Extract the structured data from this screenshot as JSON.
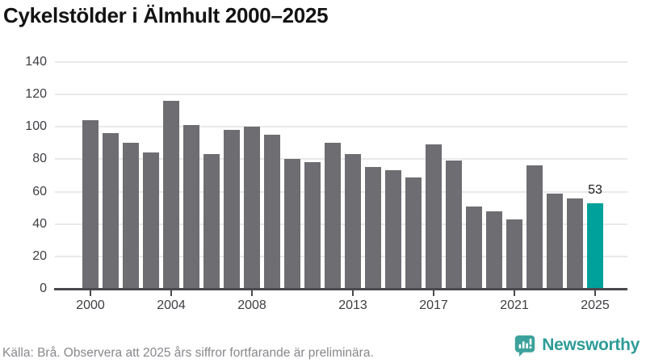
{
  "title": "Cykelstölder i Älmhult 2000–2025",
  "chart_data": {
    "type": "bar",
    "title": "Cykelstölder i Älmhult 2000–2025",
    "x": [
      2000,
      2001,
      2002,
      2003,
      2004,
      2005,
      2006,
      2007,
      2008,
      2009,
      2010,
      2011,
      2012,
      2013,
      2014,
      2015,
      2016,
      2017,
      2018,
      2019,
      2020,
      2021,
      2022,
      2023,
      2024,
      2025
    ],
    "values": [
      104,
      96,
      90,
      84,
      116,
      101,
      83,
      98,
      100,
      95,
      80,
      78,
      90,
      83,
      75,
      73,
      69,
      89,
      79,
      51,
      48,
      43,
      76,
      59,
      56,
      53
    ],
    "highlight_index": 25,
    "highlight_label": "53",
    "ylim": [
      0,
      140
    ],
    "yticks": [
      0,
      20,
      40,
      60,
      80,
      100,
      120,
      140
    ],
    "xticks": [
      2000,
      2004,
      2008,
      2013,
      2017,
      2021,
      2025
    ],
    "grid": true,
    "legend": "none",
    "bar_color": "#6E6D72",
    "highlight_color": "#00A09B"
  },
  "footer": {
    "source": "Källa: Brå. Observera att 2025 års siffror fortfarande är preliminära.",
    "brand": "Newsworthy"
  },
  "colors": {
    "axis": "#4A494E",
    "gridline": "#E9E9E9",
    "tick_label": "#3E3E43",
    "title_text": "#131313",
    "source_text": "#88888D",
    "brand_teal": "#2E9C98",
    "logo_teal": "#3DA29C"
  }
}
